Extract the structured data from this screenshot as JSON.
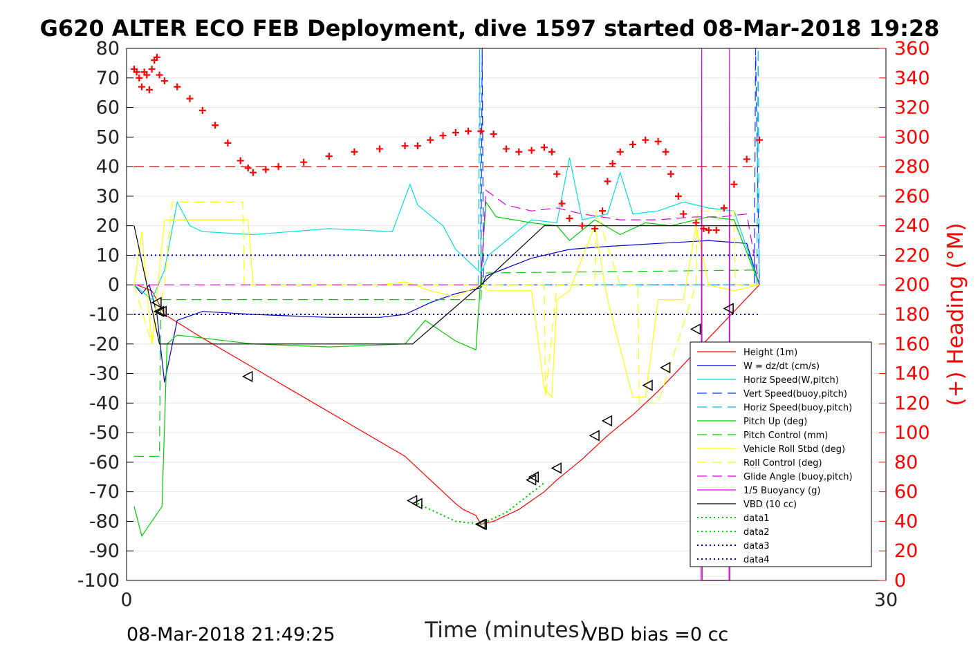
{
  "chart_data": {
    "type": "line",
    "title": "G620 ALTER ECO FEB Deployment, dive 1597 started 08-Mar-2018 19:28",
    "xlabel": "Time (minutes)",
    "ylabel": "",
    "y2label": "(+) Heading (°M)",
    "xlim": [
      0,
      30
    ],
    "ylim": [
      -100,
      80
    ],
    "y2lim": [
      0,
      360
    ],
    "xticks": [
      "0",
      "30"
    ],
    "yticks": [
      "80",
      "70",
      "60",
      "50",
      "40",
      "30",
      "20",
      "10",
      "0",
      "-10",
      "-20",
      "-30",
      "-40",
      "-50",
      "-60",
      "-70",
      "-80",
      "-90",
      "-100"
    ],
    "y2ticks": [
      "360",
      "340",
      "320",
      "300",
      "280",
      "260",
      "240",
      "220",
      "200",
      "180",
      "160",
      "140",
      "120",
      "100",
      "80",
      "60",
      "40",
      "20",
      "0"
    ],
    "grid": true,
    "legend_position": "bottom-right",
    "footer_left": "08-Mar-2018 21:49:25",
    "footer_right": "VBD bias =0 cc",
    "series": [
      {
        "name": "Height (1m)",
        "color": "#ff0000",
        "style": "solid",
        "x": [
          0.4,
          1.0,
          1.5,
          3.0,
          5.0,
          7.0,
          9.0,
          11.0,
          12.0,
          13.0,
          13.3,
          13.8,
          14.0,
          14.5,
          15.5,
          16.5,
          17.0,
          18.0,
          19.0,
          20.0,
          21.0,
          22.0,
          23.0,
          24.0,
          25.0
        ],
        "y": [
          0,
          -2,
          -10,
          -18,
          -28,
          -38,
          -48,
          -58,
          -66,
          -74,
          -76,
          -78,
          -81,
          -80,
          -76,
          -70,
          -66,
          -59,
          -51,
          -44,
          -36,
          -27,
          -18,
          -9,
          0
        ]
      },
      {
        "name": "W = dz/dt (cm/s)",
        "color": "#0000cc",
        "style": "solid",
        "x": [
          0.3,
          0.6,
          0.9,
          1.2,
          1.5,
          2.0,
          3.0,
          5.0,
          8.0,
          10.0,
          11.0,
          12.0,
          13.0,
          14.0,
          14.2,
          16.0,
          17.5,
          19.0,
          21.0,
          23.0,
          24.5,
          25.0
        ],
        "y": [
          0,
          -3,
          0,
          -10,
          -33,
          -12,
          -9,
          -10,
          -11,
          -11,
          -10,
          -6,
          -3,
          -1,
          3,
          9,
          12,
          13,
          14,
          15,
          14,
          0
        ]
      },
      {
        "name": "Horiz Speed(W,pitch)",
        "color": "#00dddd",
        "style": "solid",
        "x": [
          0.3,
          1.0,
          1.5,
          2.0,
          2.5,
          3.0,
          5.0,
          8.0,
          10.5,
          11.2,
          11.5,
          12.5,
          13.0,
          14.0,
          14.3,
          16.0,
          17.0,
          17.5,
          18.0,
          19.0,
          19.5,
          20.0,
          21.0,
          22.0,
          23.0,
          24.0,
          25.0
        ],
        "y": [
          0,
          -5,
          5,
          28,
          20,
          18,
          17,
          19,
          18,
          34,
          27,
          20,
          12,
          4,
          10,
          22,
          21,
          43,
          22,
          24,
          38,
          24,
          25,
          28,
          26,
          25,
          0
        ]
      },
      {
        "name": "Vert Speed(buoy,pitch)",
        "color": "#0033ff",
        "style": "dashed",
        "x": [
          14.0,
          14.05,
          14.1,
          24.8,
          24.85,
          25.0
        ],
        "y": [
          0,
          80,
          0,
          0,
          80,
          0
        ]
      },
      {
        "name": "Horiz Speed(buoy,pitch)",
        "color": "#00bbff",
        "style": "dashed",
        "x": [
          13.9,
          13.95,
          14.0,
          24.9,
          24.95,
          25.0
        ],
        "y": [
          0,
          80,
          0,
          0,
          80,
          0
        ]
      },
      {
        "name": "Pitch Up (deg)",
        "color": "#00cc00",
        "style": "solid",
        "x": [
          0.3,
          0.6,
          1.0,
          1.4,
          1.6,
          2.0,
          3.0,
          5.0,
          8.0,
          11.0,
          11.8,
          13.0,
          13.8,
          14.2,
          14.6,
          16.0,
          17.0,
          17.5,
          18.5,
          19.5,
          20.5,
          21.5,
          23.0,
          24.0,
          25.0
        ],
        "y": [
          -75,
          -85,
          -80,
          -75,
          -20,
          -17,
          -18,
          -20,
          -21,
          -20,
          -12,
          -19,
          -22,
          28,
          23,
          21,
          20,
          15,
          22,
          17,
          21,
          20,
          23,
          22,
          0
        ]
      },
      {
        "name": "Pitch Control (mm)",
        "color": "#00cc00",
        "style": "dashed",
        "x": [
          0.3,
          1.3,
          1.35,
          14.0,
          14.05,
          25.0
        ],
        "y": [
          -58,
          -58,
          -5,
          -5,
          4,
          5
        ]
      },
      {
        "name": "Vehicle Roll Stbd (deg)",
        "color": "#ffff00",
        "style": "solid",
        "x": [
          0.3,
          0.6,
          1.0,
          1.5,
          2.0,
          4.5,
          4.8,
          5.0,
          8.0,
          10.0,
          11.0,
          12.0,
          13.0,
          14.0,
          14.3,
          16.0,
          16.5,
          16.8,
          17.0,
          17.5,
          18.5,
          19.0,
          20.0,
          20.5,
          21.0,
          22.0,
          22.5,
          23.0,
          24.0,
          25.0
        ],
        "y": [
          0,
          18,
          -20,
          22,
          22,
          22,
          22,
          0,
          0,
          0,
          1,
          -2,
          -4,
          0,
          -2,
          -2,
          -35,
          -38,
          -5,
          -2,
          20,
          -5,
          -38,
          -38,
          -5,
          -5,
          20,
          0,
          -2,
          0
        ]
      },
      {
        "name": "Roll Control (deg)",
        "color": "#ffff00",
        "style": "dashed",
        "x": [
          0.3,
          1.0,
          1.5,
          1.8,
          4.6,
          4.65,
          13.5,
          13.55,
          16.5,
          16.55,
          17.0,
          18.5,
          18.55,
          19.5,
          20.2,
          20.25,
          21.0,
          22.5,
          22.55,
          24.0,
          24.05,
          25.0
        ],
        "y": [
          0,
          -20,
          0,
          28,
          28,
          0,
          0,
          0,
          0,
          -38,
          0,
          0,
          25,
          0,
          0,
          -40,
          -40,
          0,
          25,
          25,
          0,
          0
        ]
      },
      {
        "name": "Glide Angle (buoy,pitch)",
        "color": "#dd00dd",
        "style": "dashed",
        "x": [
          0.3,
          14.0,
          14.2,
          15.0,
          16.0,
          17.0,
          18.0,
          19.5,
          21.0,
          22.5,
          23.5,
          24.5,
          25.0
        ],
        "y": [
          0,
          0,
          32,
          27,
          25,
          26,
          24,
          22,
          22,
          23,
          23,
          24,
          0
        ]
      },
      {
        "name": "1/5 Buoyancy (g)",
        "color": "#dd00dd",
        "style": "solid",
        "x": [
          22.7,
          22.72,
          22.74,
          23.8,
          23.82,
          23.84
        ],
        "y": [
          -100,
          80,
          -100,
          -100,
          80,
          -100
        ]
      },
      {
        "name": "VBD (10 cc)",
        "color": "#000000",
        "style": "solid",
        "x": [
          0.3,
          1.3,
          11.3,
          14.0,
          16.5,
          25.0
        ],
        "y": [
          20,
          -20,
          -20,
          0,
          20,
          20
        ]
      },
      {
        "name": "data1",
        "color": "#00cc00",
        "style": "dotted",
        "x": [
          11.5,
          12.5,
          13.0,
          14.0,
          15.0,
          16.5
        ],
        "y": [
          -74,
          -78,
          -80,
          -81,
          -77,
          -67
        ]
      },
      {
        "name": "data2",
        "color": "#00cc00",
        "style": "dotted",
        "x": [
          11.5,
          12.5,
          13.0,
          14.0,
          15.0,
          16.5
        ],
        "y": [
          -74,
          -78,
          -80,
          -81,
          -77,
          -67
        ]
      },
      {
        "name": "data3",
        "color": "#000099",
        "style": "dotted",
        "x": [
          0.3,
          25.0
        ],
        "y": [
          10,
          10
        ]
      },
      {
        "name": "data4",
        "color": "#000099",
        "style": "dotted",
        "x": [
          0.3,
          25.0
        ],
        "y": [
          -10,
          -10
        ]
      }
    ],
    "extra_lines": [
      {
        "color": "#cc0000",
        "style": "dashed",
        "axis": "right",
        "x": [
          0.3,
          25.0
        ],
        "y": [
          280,
          280
        ]
      }
    ],
    "markers": {
      "shape": "triangle-left",
      "x": [
        1.2,
        1.3,
        1.4,
        4.8,
        11.3,
        11.5,
        14.0,
        14.05,
        16.0,
        16.1,
        17.0,
        18.5,
        19.0,
        20.6,
        21.3,
        22.5,
        23.8
      ],
      "y": [
        -6,
        -9,
        -9,
        -31,
        -73,
        -74,
        -81,
        -81,
        -66,
        -65,
        -62,
        -51,
        -46,
        -34,
        -28,
        -15,
        -8
      ]
    },
    "heading": {
      "axis": "right",
      "color": "#ff0000",
      "x": [
        0.3,
        0.4,
        0.5,
        0.6,
        0.7,
        0.8,
        0.9,
        1.0,
        1.1,
        1.2,
        1.3,
        1.5,
        2.0,
        2.5,
        3.0,
        3.5,
        4.0,
        4.5,
        4.8,
        5.0,
        5.5,
        6.0,
        7.0,
        8.0,
        9.0,
        10.0,
        11.0,
        11.5,
        12.0,
        12.5,
        13.0,
        13.5,
        14.0,
        14.5,
        15.0,
        15.5,
        16.0,
        16.5,
        16.8,
        17.0,
        17.2,
        17.5,
        18.0,
        18.5,
        18.8,
        19.0,
        19.2,
        19.5,
        20.0,
        20.5,
        21.0,
        21.3,
        21.5,
        21.8,
        22.0,
        22.5,
        22.8,
        23.0,
        23.3,
        23.6,
        24.0,
        24.5,
        25.0
      ],
      "y": [
        346,
        344,
        340,
        334,
        344,
        342,
        332,
        346,
        352,
        354,
        342,
        338,
        334,
        326,
        318,
        308,
        296,
        284,
        279,
        276,
        278,
        280,
        283,
        287,
        290,
        292,
        294,
        294,
        298,
        301,
        303,
        304,
        304,
        302,
        292,
        290,
        291,
        293,
        290,
        275,
        255,
        245,
        240,
        238,
        250,
        270,
        282,
        290,
        295,
        298,
        297,
        290,
        275,
        260,
        248,
        242,
        238,
        237,
        237,
        252,
        268,
        285,
        298
      ]
    }
  }
}
